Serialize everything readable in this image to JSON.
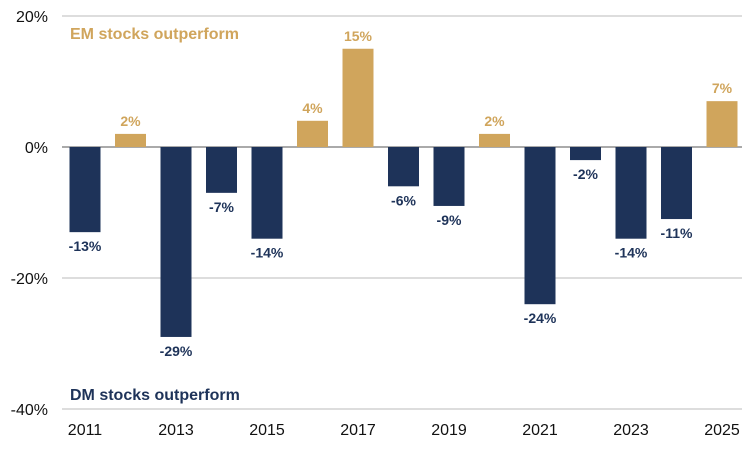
{
  "chart_data": {
    "type": "bar",
    "title": "",
    "xlabel": "",
    "ylabel": "",
    "ylim": [
      -40,
      20
    ],
    "y_ticks": [
      20,
      0,
      -20,
      -40
    ],
    "y_tick_labels": [
      "20%",
      "0%",
      "-20%",
      "-40%"
    ],
    "categories": [
      "2011",
      "2012",
      "2013",
      "2014",
      "2015",
      "2016",
      "2017",
      "2018",
      "2019",
      "2020",
      "2021",
      "2022",
      "2023",
      "2024",
      "2025"
    ],
    "x_tick_labels": [
      "2011",
      "",
      "2013",
      "",
      "2015",
      "",
      "2017",
      "",
      "2019",
      "",
      "2021",
      "",
      "2023",
      "",
      "2025"
    ],
    "values": [
      -13,
      2,
      -29,
      -7,
      -14,
      4,
      15,
      -6,
      -9,
      2,
      -24,
      -2,
      -14,
      -11,
      7
    ],
    "data_labels": [
      "-13%",
      "2%",
      "-29%",
      "-7%",
      "-14%",
      "4%",
      "15%",
      "-6%",
      "-9%",
      "2%",
      "-24%",
      "-2%",
      "-14%",
      "-11%",
      "7%"
    ],
    "colors": {
      "positive": "#D0A55C",
      "negative": "#1E3359",
      "grid": "#BBBBBB",
      "axis": "#777777"
    },
    "annotations": {
      "top": "EM stocks outperform",
      "bottom": "DM stocks outperform"
    },
    "grid": true
  }
}
